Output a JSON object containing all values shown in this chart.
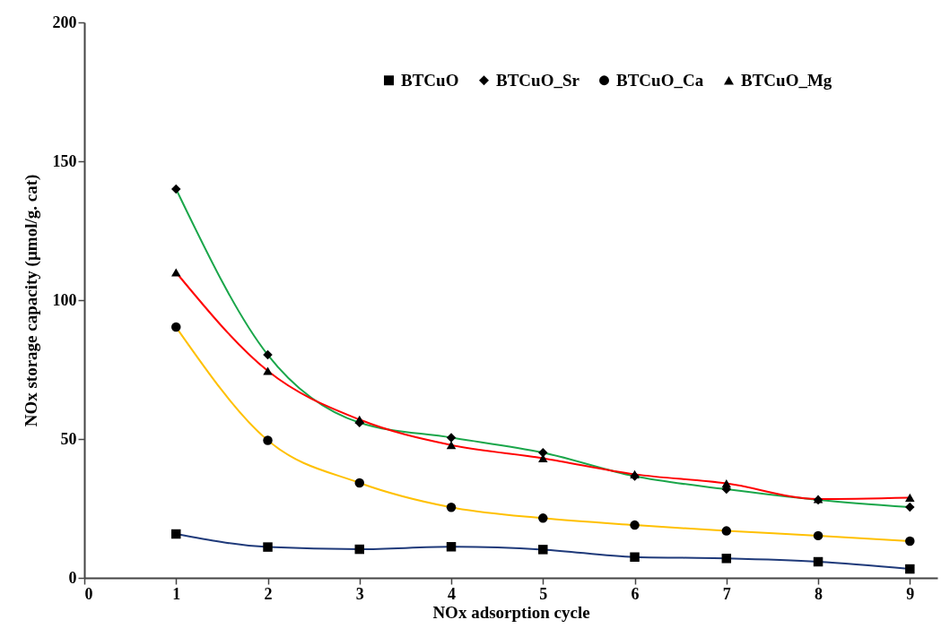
{
  "chart_data": {
    "type": "line",
    "xlabel": "NOx adsorption cycle",
    "ylabel": "NOx storage capacity (µmol/g. cat)",
    "x": [
      1,
      2,
      3,
      4,
      5,
      6,
      7,
      8,
      9
    ],
    "xlim": [
      0,
      9.3
    ],
    "xticks": [
      0,
      1,
      2,
      3,
      4,
      5,
      6,
      7,
      8,
      9
    ],
    "ylim": [
      0,
      200
    ],
    "yticks": [
      0,
      50,
      100,
      150,
      200
    ],
    "grid": false,
    "legend": "top",
    "series": [
      {
        "name": "BTCuO",
        "color": "#1f3a7a",
        "marker": "square",
        "values": [
          15.8,
          11.1,
          10.3,
          11.2,
          10.2,
          7.5,
          7.0,
          5.8,
          3.2
        ]
      },
      {
        "name": "BTCuO_Sr",
        "color": "#1aa64a",
        "marker": "diamond",
        "values": [
          140,
          80.3,
          55.9,
          50.5,
          45.1,
          36.6,
          31.9,
          28.1,
          25.5
        ]
      },
      {
        "name": "BTCuO_Ca",
        "color": "#ffc000",
        "marker": "circle",
        "values": [
          90.3,
          49.5,
          34.2,
          25.4,
          21.5,
          19.0,
          16.9,
          15.2,
          13.2
        ]
      },
      {
        "name": "BTCuO_Mg",
        "color": "#ff0000",
        "marker": "triangle",
        "values": [
          110,
          74.5,
          57,
          47.8,
          43.1,
          37.3,
          34.0,
          28.4,
          28.9
        ]
      }
    ]
  }
}
